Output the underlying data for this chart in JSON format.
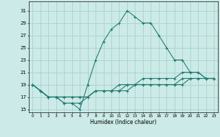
{
  "xlabel": "Humidex (Indice chaleur)",
  "background_color": "#cceae7",
  "grid_color": "#aad4d0",
  "line_color": "#1e7a6e",
  "xlim": [
    -0.5,
    23.5
  ],
  "ylim": [
    14.5,
    32.5
  ],
  "xticks": [
    0,
    1,
    2,
    3,
    4,
    5,
    6,
    7,
    8,
    9,
    10,
    11,
    12,
    13,
    14,
    15,
    16,
    17,
    18,
    19,
    20,
    21,
    22,
    23
  ],
  "yticks": [
    15,
    17,
    19,
    21,
    23,
    25,
    27,
    29,
    31
  ],
  "lines": [
    {
      "x": [
        0,
        1,
        2,
        3,
        4,
        5,
        6,
        7,
        8,
        9,
        10,
        11,
        12,
        13,
        14,
        15,
        16,
        17,
        18,
        19,
        20,
        21,
        22,
        23
      ],
      "y": [
        19,
        18,
        17,
        17,
        16,
        16,
        15,
        19,
        23,
        26,
        28,
        29,
        31,
        30,
        29,
        29,
        27,
        25,
        23,
        23,
        21,
        21,
        20,
        20
      ]
    },
    {
      "x": [
        0,
        1,
        2,
        3,
        4,
        5,
        6,
        7,
        8,
        9,
        10,
        11,
        12,
        13,
        14,
        15,
        16,
        17,
        18,
        19,
        20,
        21,
        22,
        23
      ],
      "y": [
        19,
        18,
        17,
        17,
        16,
        16,
        16,
        17,
        18,
        18,
        18,
        19,
        19,
        19,
        20,
        20,
        20,
        20,
        20,
        21,
        21,
        21,
        20,
        20
      ]
    },
    {
      "x": [
        0,
        1,
        2,
        3,
        4,
        5,
        6,
        7,
        8,
        9,
        10,
        11,
        12,
        13,
        14,
        15,
        16,
        17,
        18,
        19,
        20,
        21,
        22,
        23
      ],
      "y": [
        19,
        18,
        17,
        17,
        17,
        17,
        17,
        17,
        18,
        18,
        18,
        18,
        19,
        19,
        19,
        19,
        19,
        19,
        19,
        20,
        20,
        20,
        20,
        20
      ]
    },
    {
      "x": [
        0,
        1,
        2,
        3,
        4,
        5,
        6,
        7,
        8,
        9,
        10,
        11,
        12,
        13,
        14,
        15,
        16,
        17,
        18,
        19,
        20,
        21,
        22,
        23
      ],
      "y": [
        19,
        18,
        17,
        17,
        17,
        17,
        17,
        17,
        18,
        18,
        18,
        18,
        18,
        19,
        19,
        19,
        19,
        19,
        19,
        19,
        20,
        20,
        20,
        20
      ]
    }
  ]
}
